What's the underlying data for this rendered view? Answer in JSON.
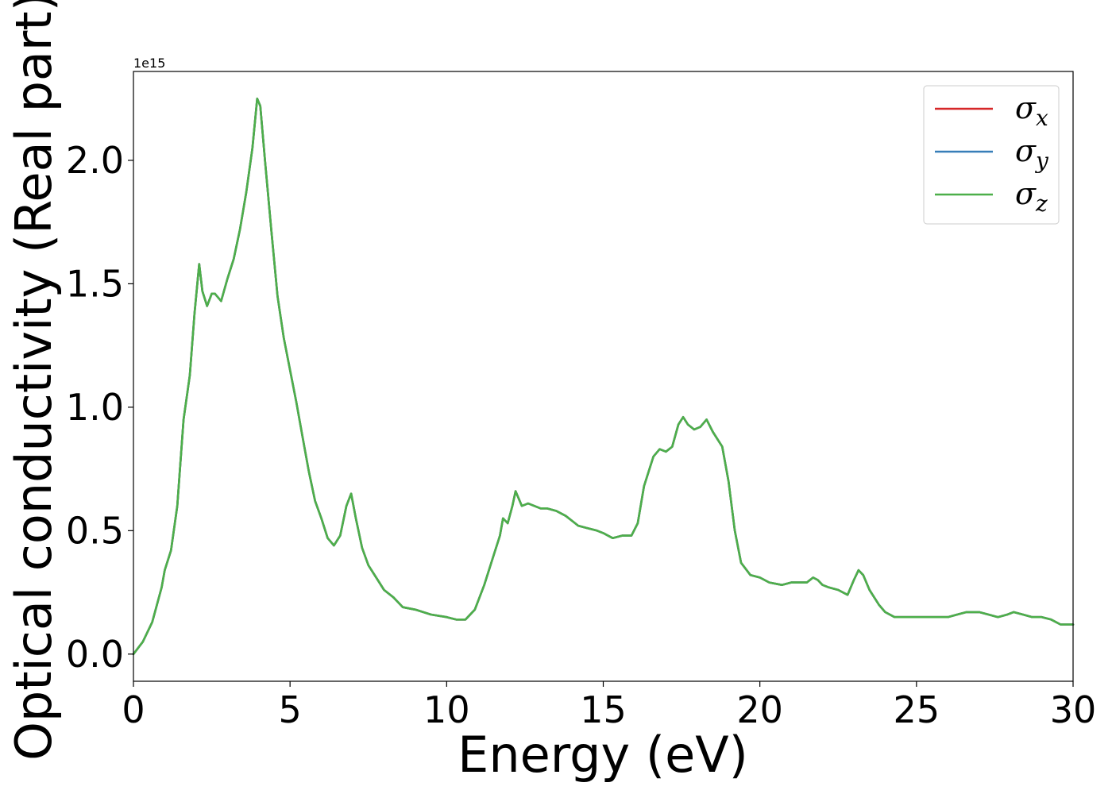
{
  "chart_data": {
    "type": "line",
    "xlabel": "Energy (eV)",
    "ylabel": "Optical conductivity (Real part)",
    "y_offset_text": "1e15",
    "xlim": [
      0,
      30
    ],
    "ylim": [
      -0.11,
      2.36
    ],
    "y_scale": 1000000000000000.0,
    "x_ticks": [
      0,
      5,
      10,
      15,
      20,
      25,
      30
    ],
    "x_tick_labels": [
      "0",
      "5",
      "10",
      "15",
      "20",
      "25",
      "30"
    ],
    "y_ticks": [
      0.0,
      0.5,
      1.0,
      1.5,
      2.0
    ],
    "y_tick_labels": [
      "0.0",
      "0.5",
      "1.0",
      "1.5",
      "2.0"
    ],
    "grid": false,
    "legend_position": "upper-right",
    "x": [
      0,
      0.3,
      0.6,
      0.9,
      1.0,
      1.2,
      1.4,
      1.6,
      1.8,
      1.95,
      2.1,
      2.2,
      2.35,
      2.5,
      2.6,
      2.8,
      3.0,
      3.2,
      3.4,
      3.6,
      3.8,
      3.95,
      4.05,
      4.2,
      4.4,
      4.6,
      4.8,
      5.0,
      5.2,
      5.4,
      5.6,
      5.8,
      6.0,
      6.2,
      6.4,
      6.6,
      6.8,
      6.95,
      7.1,
      7.3,
      7.5,
      7.8,
      8.0,
      8.3,
      8.6,
      9.0,
      9.5,
      10.0,
      10.3,
      10.6,
      10.9,
      11.2,
      11.5,
      11.7,
      11.8,
      11.95,
      12.1,
      12.2,
      12.4,
      12.6,
      12.8,
      13.0,
      13.2,
      13.5,
      13.8,
      14.0,
      14.2,
      14.5,
      14.8,
      15.0,
      15.3,
      15.6,
      15.9,
      16.1,
      16.3,
      16.6,
      16.8,
      17.0,
      17.2,
      17.4,
      17.55,
      17.7,
      17.9,
      18.1,
      18.3,
      18.5,
      18.8,
      19.0,
      19.2,
      19.4,
      19.7,
      20.0,
      20.3,
      20.7,
      21.0,
      21.3,
      21.5,
      21.7,
      21.85,
      22.0,
      22.2,
      22.5,
      22.8,
      23.0,
      23.15,
      23.3,
      23.5,
      23.8,
      24.0,
      24.3,
      24.6,
      25.0,
      25.5,
      26.0,
      26.3,
      26.6,
      27.0,
      27.3,
      27.6,
      27.9,
      28.1,
      28.4,
      28.7,
      29.0,
      29.3,
      29.6,
      30.0
    ],
    "series": [
      {
        "name": "σx",
        "color": "#d62728",
        "values": [
          0.0,
          0.05,
          0.13,
          0.27,
          0.34,
          0.42,
          0.6,
          0.95,
          1.13,
          1.38,
          1.58,
          1.47,
          1.41,
          1.46,
          1.46,
          1.43,
          1.52,
          1.6,
          1.72,
          1.87,
          2.05,
          2.25,
          2.22,
          2.0,
          1.72,
          1.45,
          1.28,
          1.15,
          1.02,
          0.88,
          0.74,
          0.62,
          0.55,
          0.47,
          0.44,
          0.48,
          0.6,
          0.65,
          0.55,
          0.43,
          0.36,
          0.3,
          0.26,
          0.23,
          0.19,
          0.18,
          0.16,
          0.15,
          0.14,
          0.14,
          0.18,
          0.28,
          0.4,
          0.48,
          0.55,
          0.53,
          0.6,
          0.66,
          0.6,
          0.61,
          0.6,
          0.59,
          0.59,
          0.58,
          0.56,
          0.54,
          0.52,
          0.51,
          0.5,
          0.49,
          0.47,
          0.48,
          0.48,
          0.53,
          0.68,
          0.8,
          0.83,
          0.82,
          0.84,
          0.93,
          0.96,
          0.93,
          0.91,
          0.92,
          0.95,
          0.9,
          0.84,
          0.7,
          0.5,
          0.37,
          0.32,
          0.31,
          0.29,
          0.28,
          0.29,
          0.29,
          0.29,
          0.31,
          0.3,
          0.28,
          0.27,
          0.26,
          0.24,
          0.3,
          0.34,
          0.32,
          0.26,
          0.2,
          0.17,
          0.15,
          0.15,
          0.15,
          0.15,
          0.15,
          0.16,
          0.17,
          0.17,
          0.16,
          0.15,
          0.16,
          0.17,
          0.16,
          0.15,
          0.15,
          0.14,
          0.12,
          0.12
        ]
      },
      {
        "name": "σy",
        "color": "#377eb8",
        "values": [
          0.0,
          0.05,
          0.13,
          0.27,
          0.34,
          0.42,
          0.6,
          0.95,
          1.13,
          1.38,
          1.58,
          1.47,
          1.41,
          1.46,
          1.46,
          1.43,
          1.52,
          1.6,
          1.72,
          1.87,
          2.05,
          2.25,
          2.22,
          2.0,
          1.72,
          1.45,
          1.28,
          1.15,
          1.02,
          0.88,
          0.74,
          0.62,
          0.55,
          0.47,
          0.44,
          0.48,
          0.6,
          0.65,
          0.55,
          0.43,
          0.36,
          0.3,
          0.26,
          0.23,
          0.19,
          0.18,
          0.16,
          0.15,
          0.14,
          0.14,
          0.18,
          0.28,
          0.4,
          0.48,
          0.55,
          0.53,
          0.6,
          0.66,
          0.6,
          0.61,
          0.6,
          0.59,
          0.59,
          0.58,
          0.56,
          0.54,
          0.52,
          0.51,
          0.5,
          0.49,
          0.47,
          0.48,
          0.48,
          0.53,
          0.68,
          0.8,
          0.83,
          0.82,
          0.84,
          0.93,
          0.96,
          0.93,
          0.91,
          0.92,
          0.95,
          0.9,
          0.84,
          0.7,
          0.5,
          0.37,
          0.32,
          0.31,
          0.29,
          0.28,
          0.29,
          0.29,
          0.29,
          0.31,
          0.3,
          0.28,
          0.27,
          0.26,
          0.24,
          0.3,
          0.34,
          0.32,
          0.26,
          0.2,
          0.17,
          0.15,
          0.15,
          0.15,
          0.15,
          0.15,
          0.16,
          0.17,
          0.17,
          0.16,
          0.15,
          0.16,
          0.17,
          0.16,
          0.15,
          0.15,
          0.14,
          0.12,
          0.12
        ]
      },
      {
        "name": "σz",
        "color": "#4daf4a",
        "values": [
          0.0,
          0.05,
          0.13,
          0.27,
          0.34,
          0.42,
          0.6,
          0.95,
          1.13,
          1.38,
          1.58,
          1.47,
          1.41,
          1.46,
          1.46,
          1.43,
          1.52,
          1.6,
          1.72,
          1.87,
          2.05,
          2.25,
          2.22,
          2.0,
          1.72,
          1.45,
          1.28,
          1.15,
          1.02,
          0.88,
          0.74,
          0.62,
          0.55,
          0.47,
          0.44,
          0.48,
          0.6,
          0.65,
          0.55,
          0.43,
          0.36,
          0.3,
          0.26,
          0.23,
          0.19,
          0.18,
          0.16,
          0.15,
          0.14,
          0.14,
          0.18,
          0.28,
          0.4,
          0.48,
          0.55,
          0.53,
          0.6,
          0.66,
          0.6,
          0.61,
          0.6,
          0.59,
          0.59,
          0.58,
          0.56,
          0.54,
          0.52,
          0.51,
          0.5,
          0.49,
          0.47,
          0.48,
          0.48,
          0.53,
          0.68,
          0.8,
          0.83,
          0.82,
          0.84,
          0.93,
          0.96,
          0.93,
          0.91,
          0.92,
          0.95,
          0.9,
          0.84,
          0.7,
          0.5,
          0.37,
          0.32,
          0.31,
          0.29,
          0.28,
          0.29,
          0.29,
          0.29,
          0.31,
          0.3,
          0.28,
          0.27,
          0.26,
          0.24,
          0.3,
          0.34,
          0.32,
          0.26,
          0.2,
          0.17,
          0.15,
          0.15,
          0.15,
          0.15,
          0.15,
          0.16,
          0.17,
          0.17,
          0.16,
          0.15,
          0.16,
          0.17,
          0.16,
          0.15,
          0.15,
          0.14,
          0.12,
          0.12
        ]
      }
    ],
    "legend": [
      {
        "symbol": "σ",
        "sub": "x",
        "color": "#d62728"
      },
      {
        "symbol": "σ",
        "sub": "y",
        "color": "#377eb8"
      },
      {
        "symbol": "σ",
        "sub": "z",
        "color": "#4daf4a"
      }
    ]
  }
}
